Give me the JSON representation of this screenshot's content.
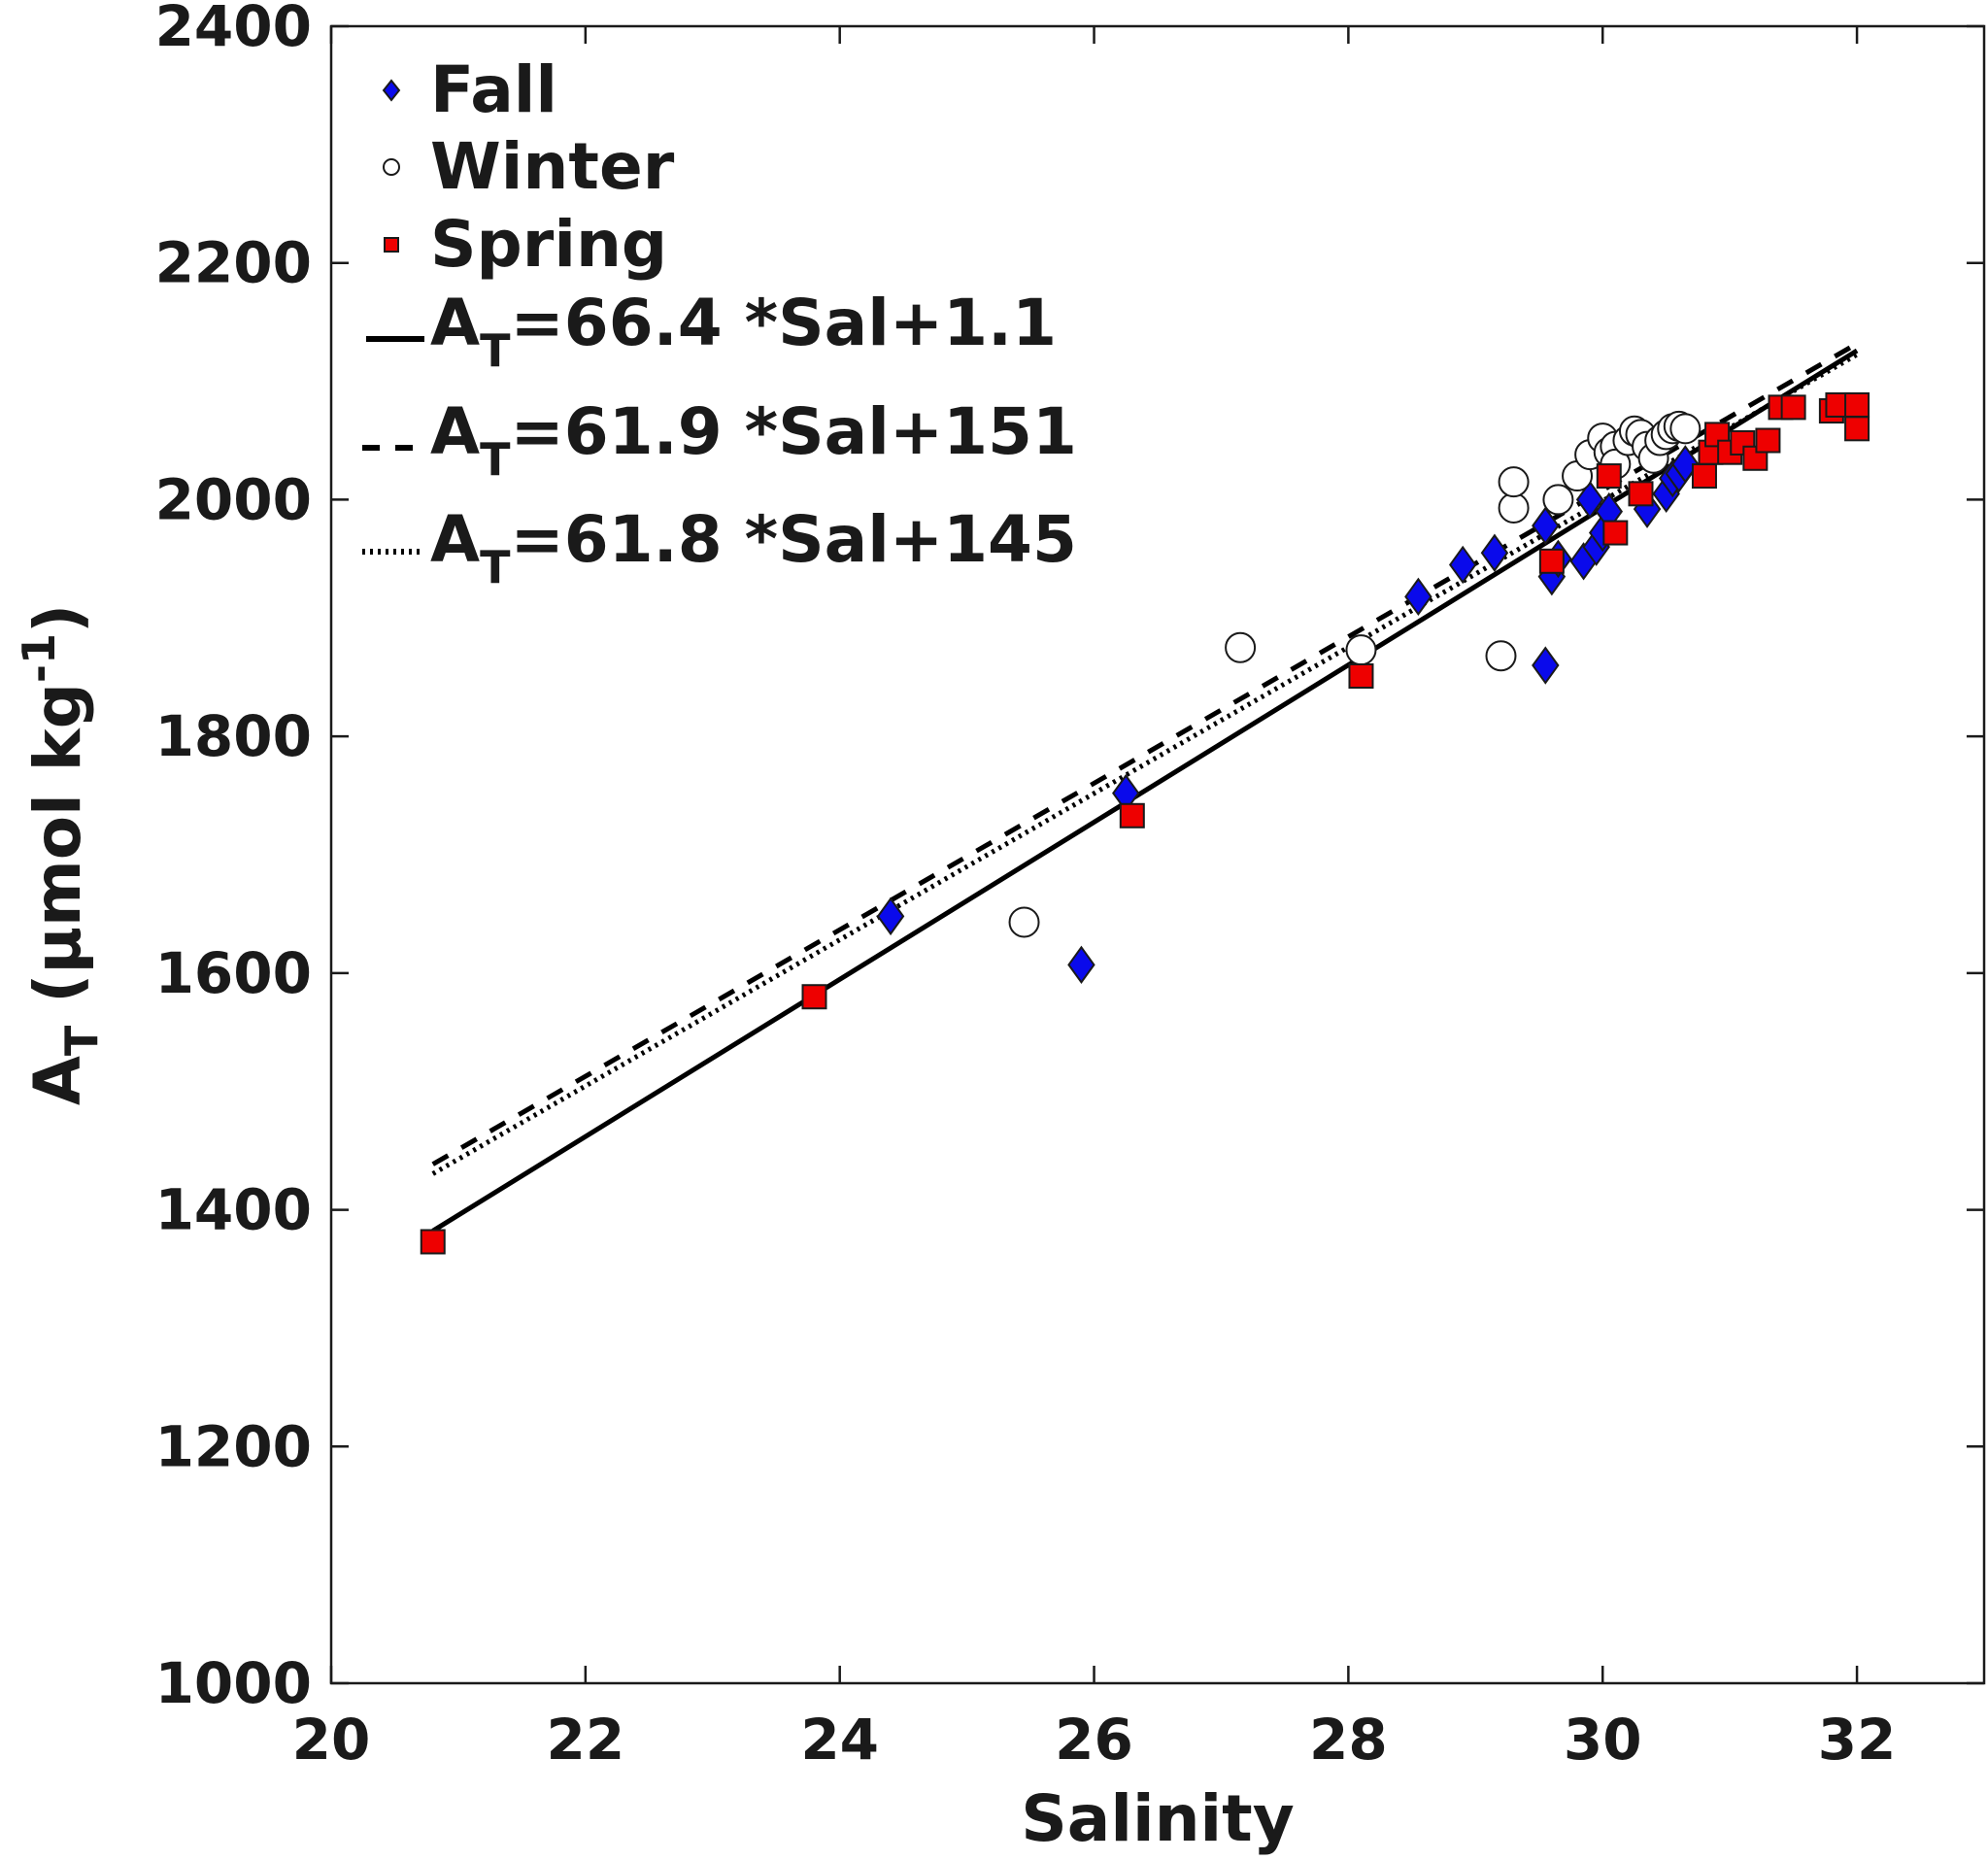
{
  "chart_data": {
    "type": "scatter",
    "xlabel": "Salinity",
    "ylabel": {
      "main": "A",
      "sub": "T",
      "units_prefix": " (µmol kg",
      "units_sup": "-1",
      "units_suffix": ")"
    },
    "xlim": [
      20,
      33
    ],
    "ylim": [
      1000,
      2400
    ],
    "x_ticks": [
      20,
      22,
      24,
      26,
      28,
      30,
      32
    ],
    "y_ticks": [
      1000,
      1200,
      1400,
      1600,
      1800,
      2000,
      2200,
      2400
    ],
    "grid": false,
    "legend_position": "top-left",
    "series": [
      {
        "name": "Fall",
        "marker": "diamond",
        "color": "#0a0aeb",
        "points": [
          [
            24.4,
            1648
          ],
          [
            25.9,
            1607
          ],
          [
            26.25,
            1752
          ],
          [
            28.55,
            1918
          ],
          [
            28.9,
            1945
          ],
          [
            29.15,
            1955
          ],
          [
            29.55,
            1860
          ],
          [
            29.55,
            1978
          ],
          [
            29.6,
            1935
          ],
          [
            29.65,
            1950
          ],
          [
            29.85,
            1948
          ],
          [
            29.9,
            2000
          ],
          [
            29.95,
            1960
          ],
          [
            30.0,
            1972
          ],
          [
            30.05,
            1990
          ],
          [
            30.35,
            1992
          ],
          [
            30.5,
            2005
          ],
          [
            30.55,
            2018
          ],
          [
            30.6,
            2022
          ],
          [
            30.65,
            2030
          ]
        ]
      },
      {
        "name": "Winter",
        "marker": "circle",
        "color": "#ffffff",
        "points": [
          [
            25.45,
            1643
          ],
          [
            27.15,
            1875
          ],
          [
            28.1,
            1873
          ],
          [
            29.2,
            1868
          ],
          [
            29.3,
            1993
          ],
          [
            29.3,
            2015
          ],
          [
            29.65,
            2000
          ],
          [
            29.8,
            2020
          ],
          [
            29.9,
            2038
          ],
          [
            30.0,
            2052
          ],
          [
            30.05,
            2040
          ],
          [
            30.1,
            2045
          ],
          [
            30.1,
            2030
          ],
          [
            30.2,
            2050
          ],
          [
            30.25,
            2058
          ],
          [
            30.3,
            2055
          ],
          [
            30.35,
            2045
          ],
          [
            30.4,
            2035
          ],
          [
            30.45,
            2050
          ],
          [
            30.5,
            2055
          ],
          [
            30.55,
            2060
          ],
          [
            30.6,
            2062
          ],
          [
            30.65,
            2060
          ]
        ]
      },
      {
        "name": "Spring",
        "marker": "square",
        "color": "#ee0000",
        "points": [
          [
            20.8,
            1373
          ],
          [
            23.8,
            1580
          ],
          [
            26.3,
            1733
          ],
          [
            28.1,
            1851
          ],
          [
            29.6,
            1948
          ],
          [
            30.05,
            2020
          ],
          [
            30.1,
            1972
          ],
          [
            30.3,
            2005
          ],
          [
            30.8,
            2020
          ],
          [
            30.85,
            2040
          ],
          [
            30.9,
            2055
          ],
          [
            31.0,
            2040
          ],
          [
            31.1,
            2048
          ],
          [
            31.2,
            2035
          ],
          [
            31.3,
            2050
          ],
          [
            31.4,
            2078
          ],
          [
            31.5,
            2078
          ],
          [
            31.8,
            2075
          ],
          [
            31.85,
            2080
          ],
          [
            32.0,
            2060
          ],
          [
            32.0,
            2080
          ]
        ]
      }
    ],
    "fits": [
      {
        "name": "A",
        "sub": "T",
        "eq": "=66.4 *Sal+1.1",
        "slope": 66.4,
        "intercept": 1.1,
        "style": "solid",
        "x_range": [
          20.8,
          32.0
        ]
      },
      {
        "name": "A",
        "sub": "T",
        "eq": "=61.9 *Sal+151",
        "slope": 61.9,
        "intercept": 151,
        "style": "dashed",
        "x_range": [
          20.8,
          32.0
        ]
      },
      {
        "name": "A",
        "sub": "T",
        "eq": "=61.8 *Sal+145",
        "slope": 61.8,
        "intercept": 145,
        "style": "dotted",
        "x_range": [
          20.8,
          32.0
        ]
      }
    ]
  }
}
